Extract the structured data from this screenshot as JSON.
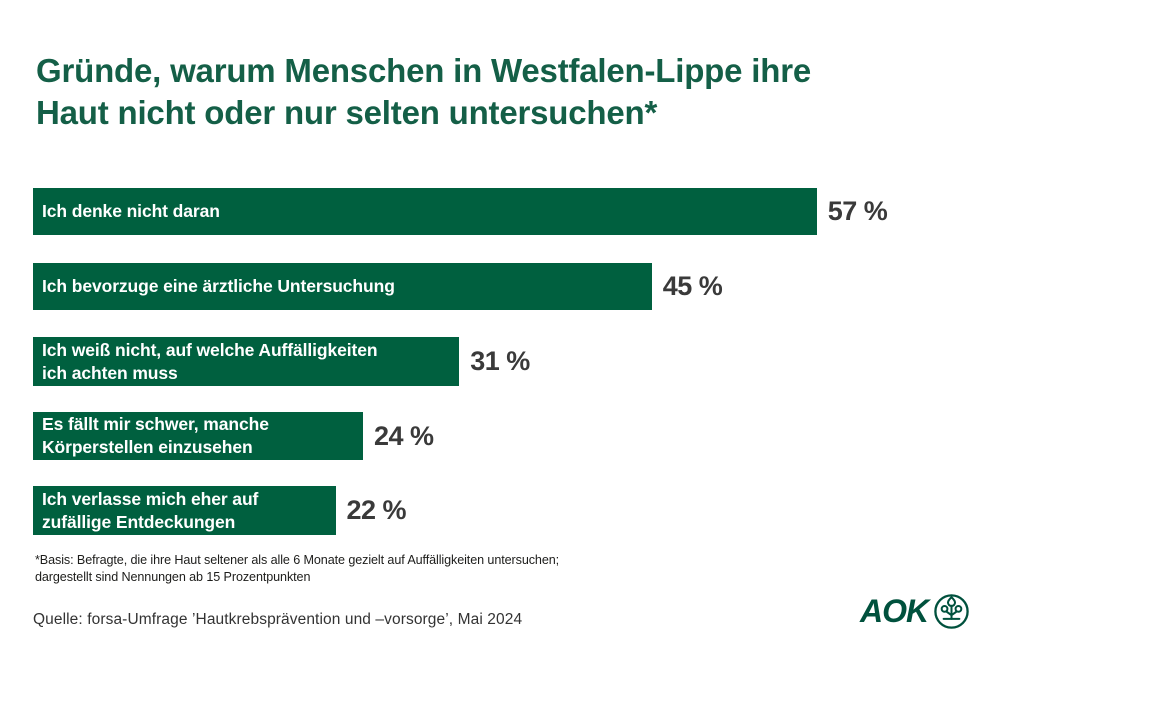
{
  "title_lines": [
    "Gründe, warum Menschen in Westfalen-Lippe ihre",
    "Haut nicht oder nur selten untersuchen*"
  ],
  "chart_data": {
    "type": "bar",
    "orientation": "horizontal",
    "title": "Gründe, warum Menschen in Westfalen-Lippe ihre Haut nicht oder nur selten untersuchen*",
    "unit": "%",
    "xlim": [
      0,
      60
    ],
    "grid": false,
    "legend": false,
    "categories": [
      "Ich denke nicht daran",
      "Ich bevorzuge eine ärztliche Untersuchung",
      "Ich weiß nicht, auf welche Auffälligkeiten ich achten muss",
      "Es fällt mir schwer, manche Körperstellen einzusehen",
      "Ich verlasse mich eher auf zufällige Entdeckungen"
    ],
    "values": [
      57,
      45,
      31,
      24,
      22
    ],
    "rows": [
      {
        "lines": [
          "Ich denke nicht daran"
        ],
        "value": 57,
        "label": "57 %"
      },
      {
        "lines": [
          "Ich bevorzuge eine ärztliche Untersuchung"
        ],
        "value": 45,
        "label": "45 %"
      },
      {
        "lines": [
          "Ich weiß nicht, auf welche Auffälligkeiten",
          "ich achten muss"
        ],
        "value": 31,
        "label": "31 %"
      },
      {
        "lines": [
          "Es fällt mir schwer, manche",
          "Körperstellen einzusehen"
        ],
        "value": 24,
        "label": "24 %"
      },
      {
        "lines": [
          "Ich verlasse mich eher auf",
          "zufällige Entdeckungen"
        ],
        "value": 22,
        "label": "22 %"
      }
    ],
    "colors": {
      "bar": "#00603f",
      "bar_label": "#ffffff",
      "value_label": "#3a3a3a",
      "title": "#145f47"
    }
  },
  "footnote_lines": [
    "*Basis: Befragte, die ihre Haut seltener als alle 6 Monate gezielt auf Auffälligkeiten untersuchen;",
    "dargestellt sind Nennungen ab 15 Prozentpunkten"
  ],
  "source": "Quelle: forsa-Umfrage ’Hautkrebsprävention und –vorsorge’, Mai 2024",
  "logo": {
    "text": "AOK",
    "icon": "aok-tree-icon",
    "color": "#00513d"
  }
}
